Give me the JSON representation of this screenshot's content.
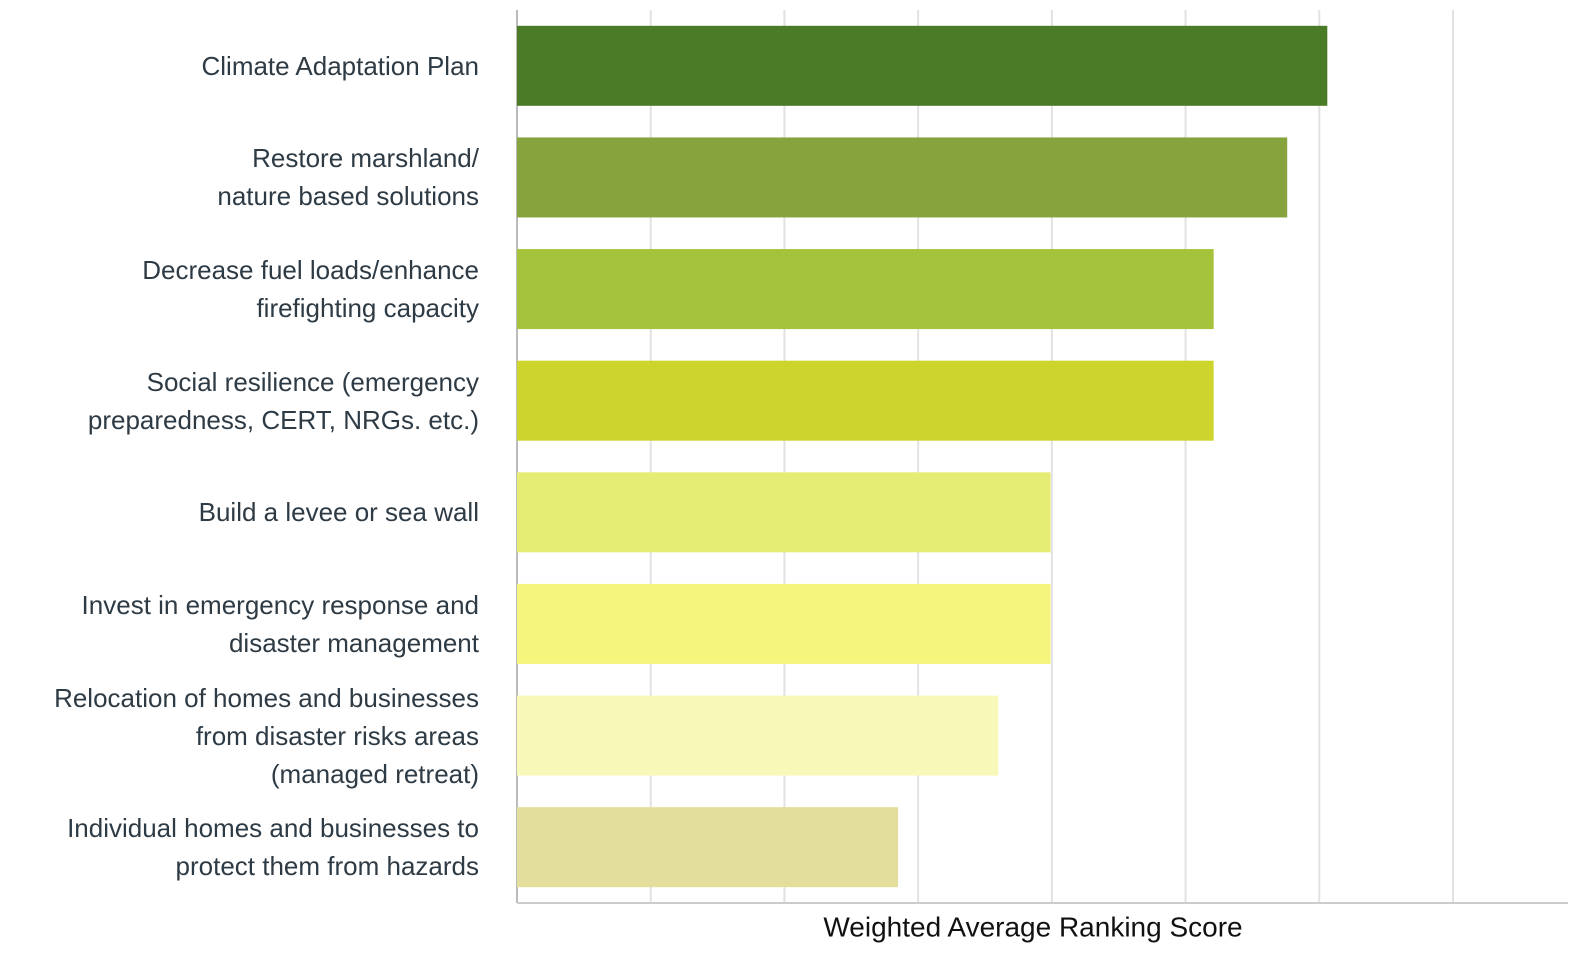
{
  "chart_data": {
    "type": "bar",
    "orientation": "horizontal",
    "x_label": "Weighted Average Ranking Score",
    "categories": [
      "Climate Adaptation Plan",
      "Restore marshland/\nnature based solutions",
      "Decrease fuel loads/enhance\nfirefighting capacity",
      "Social resilience (emergency\npreparedness, CERT, NRGs. etc.)",
      "Build a levee or sea wall",
      "Invest in emergency response and\ndisaster management",
      "Relocation of homes and businesses\nfrom disaster risks areas\n(managed retreat)",
      "Individual homes and businesses to\nprotect them from hazards"
    ],
    "values": [
      6.06,
      5.76,
      5.21,
      5.21,
      3.99,
      3.99,
      3.6,
      2.85
    ],
    "colors": [
      "#4a7c27",
      "#86a33d",
      "#a5c23b",
      "#cdd52d",
      "#e5ec74",
      "#f5f57e",
      "#f8f9b8",
      "#e3de9c"
    ],
    "xlim": [
      0,
      7.86
    ],
    "xticks": [
      0,
      1,
      2,
      3,
      4,
      5,
      6,
      7
    ],
    "grid": true
  }
}
